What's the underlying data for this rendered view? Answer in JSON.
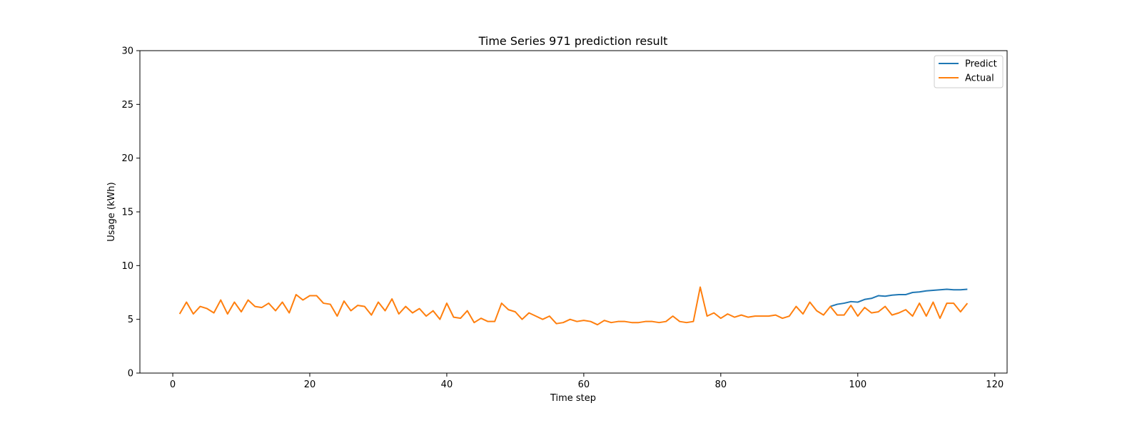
{
  "chart_data": {
    "type": "line",
    "title": "Time Series 971 prediction result",
    "xlabel": "Time step",
    "ylabel": "Usage (kWh)",
    "xlim": [
      -4.8,
      121.8
    ],
    "ylim": [
      0,
      30
    ],
    "xticks": [
      0,
      20,
      40,
      60,
      80,
      100,
      120
    ],
    "yticks": [
      0,
      5,
      10,
      15,
      20,
      25,
      30
    ],
    "grid": false,
    "legend_position": "top-right",
    "series": [
      {
        "name": "Predict",
        "color": "#1f77b4",
        "x": [
          96,
          97,
          98,
          99,
          100,
          101,
          102,
          103,
          104,
          105,
          106,
          107,
          108,
          109,
          110,
          111,
          112,
          113,
          114,
          115,
          116
        ],
        "y": [
          6.2,
          6.4,
          6.5,
          6.65,
          6.6,
          6.85,
          6.95,
          7.2,
          7.15,
          7.25,
          7.3,
          7.3,
          7.5,
          7.55,
          7.65,
          7.7,
          7.75,
          7.8,
          7.75,
          7.75,
          7.8
        ]
      },
      {
        "name": "Actual",
        "color": "#ff7f0e",
        "x": [
          1,
          2,
          3,
          4,
          5,
          6,
          7,
          8,
          9,
          10,
          11,
          12,
          13,
          14,
          15,
          16,
          17,
          18,
          19,
          20,
          21,
          22,
          23,
          24,
          25,
          26,
          27,
          28,
          29,
          30,
          31,
          32,
          33,
          34,
          35,
          36,
          37,
          38,
          39,
          40,
          41,
          42,
          43,
          44,
          45,
          46,
          47,
          48,
          49,
          50,
          51,
          52,
          53,
          54,
          55,
          56,
          57,
          58,
          59,
          60,
          61,
          62,
          63,
          64,
          65,
          66,
          67,
          68,
          69,
          70,
          71,
          72,
          73,
          74,
          75,
          76,
          77,
          78,
          79,
          80,
          81,
          82,
          83,
          84,
          85,
          86,
          87,
          88,
          89,
          90,
          91,
          92,
          93,
          94,
          95,
          96,
          97,
          98,
          99,
          100,
          101,
          102,
          103,
          104,
          105,
          106,
          107,
          108,
          109,
          110,
          111,
          112,
          113,
          114,
          115,
          116
        ],
        "y": [
          5.5,
          6.6,
          5.5,
          6.2,
          6.0,
          5.6,
          6.8,
          5.5,
          6.6,
          5.7,
          6.8,
          6.2,
          6.1,
          6.5,
          5.8,
          6.6,
          5.6,
          7.3,
          6.8,
          7.2,
          7.2,
          6.5,
          6.4,
          5.3,
          6.7,
          5.8,
          6.3,
          6.2,
          5.4,
          6.6,
          5.8,
          6.9,
          5.5,
          6.2,
          5.6,
          6.0,
          5.3,
          5.8,
          5.0,
          6.5,
          5.2,
          5.1,
          5.8,
          4.7,
          5.1,
          4.8,
          4.8,
          6.5,
          5.9,
          5.7,
          5.0,
          5.6,
          5.3,
          5.0,
          5.3,
          4.6,
          4.7,
          5.0,
          4.8,
          4.9,
          4.8,
          4.5,
          4.9,
          4.7,
          4.8,
          4.8,
          4.7,
          4.7,
          4.8,
          4.8,
          4.7,
          4.8,
          5.3,
          4.8,
          4.7,
          4.8,
          8.0,
          5.3,
          5.6,
          5.1,
          5.5,
          5.2,
          5.4,
          5.2,
          5.3,
          5.3,
          5.3,
          5.4,
          5.1,
          5.3,
          6.2,
          5.5,
          6.6,
          5.8,
          5.4,
          6.2,
          5.4,
          5.4,
          6.3,
          5.3,
          6.1,
          5.6,
          5.7,
          6.2,
          5.4,
          5.6,
          5.9,
          5.3,
          6.5,
          5.3,
          6.6,
          5.1,
          6.5,
          6.5,
          5.7,
          6.5
        ]
      }
    ]
  }
}
